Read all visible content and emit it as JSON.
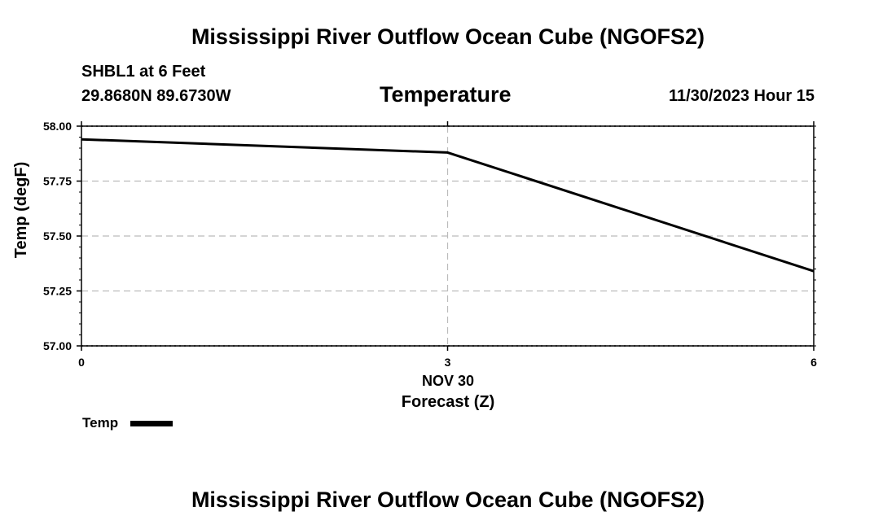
{
  "header": {
    "title": "Mississippi River Outflow Ocean Cube (NGOFS2)",
    "station_line1": "SHBL1 at 6 Feet",
    "station_line2": "29.8680N  89.6730W",
    "chart_title": "Temperature",
    "datetime": "11/30/2023 Hour 15"
  },
  "footer": {
    "title": "Mississippi River Outflow Ocean Cube (NGOFS2)"
  },
  "chart_data": {
    "type": "line",
    "title": "Temperature",
    "xlabel": "Forecast (Z)",
    "xlabel_date": "NOV 30",
    "ylabel": "Temp (degF)",
    "x": [
      0,
      3,
      6
    ],
    "series": [
      {
        "name": "Temp",
        "values": [
          57.94,
          57.88,
          57.34
        ],
        "color": "#000000"
      }
    ],
    "xlim": [
      0,
      6
    ],
    "ylim": [
      57.0,
      58.0
    ],
    "xticks": [
      "0",
      "3",
      "6"
    ],
    "yticks": [
      "57.00",
      "57.25",
      "57.50",
      "57.75",
      "58.00"
    ],
    "grid": true,
    "legend": "bottom-left"
  },
  "legend": {
    "label": "Temp",
    "color": "#000000"
  }
}
